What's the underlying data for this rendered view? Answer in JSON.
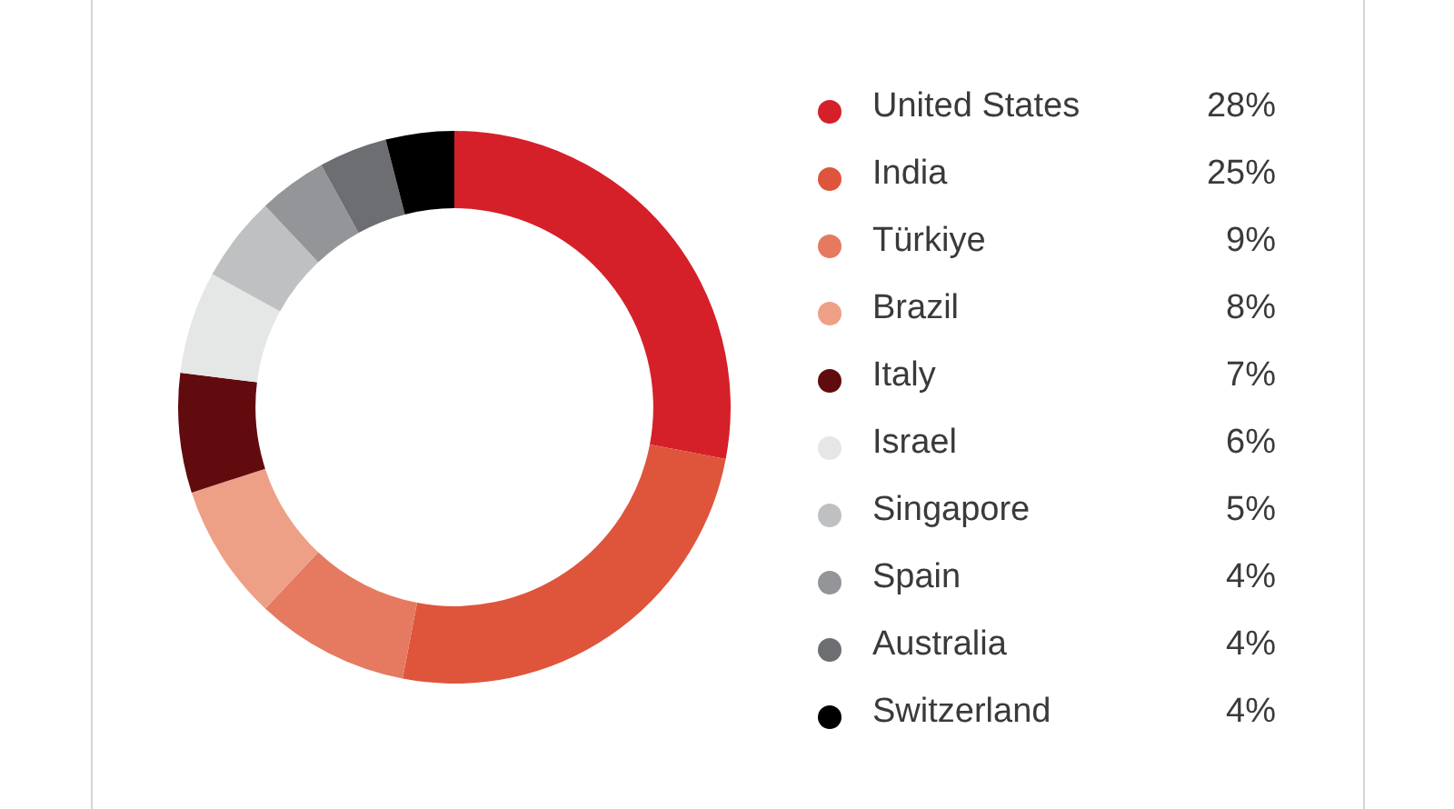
{
  "chart_data": {
    "type": "donut",
    "categories": [
      "United States",
      "India",
      "Türkiye",
      "Brazil",
      "Italy",
      "Israel",
      "Singapore",
      "Spain",
      "Australia",
      "Switzerland"
    ],
    "values": [
      28,
      25,
      9,
      8,
      7,
      6,
      5,
      4,
      4,
      4
    ],
    "value_labels": [
      "28%",
      "25%",
      "9%",
      "8%",
      "7%",
      "6%",
      "5%",
      "4%",
      "4%",
      "4%"
    ],
    "colors": [
      "#d52029",
      "#de553b",
      "#e57a60",
      "#eea086",
      "#620b0e",
      "#e5e6e6",
      "#bfc0c1",
      "#939598",
      "#6d6e71",
      "#000000"
    ],
    "legend": "right"
  }
}
